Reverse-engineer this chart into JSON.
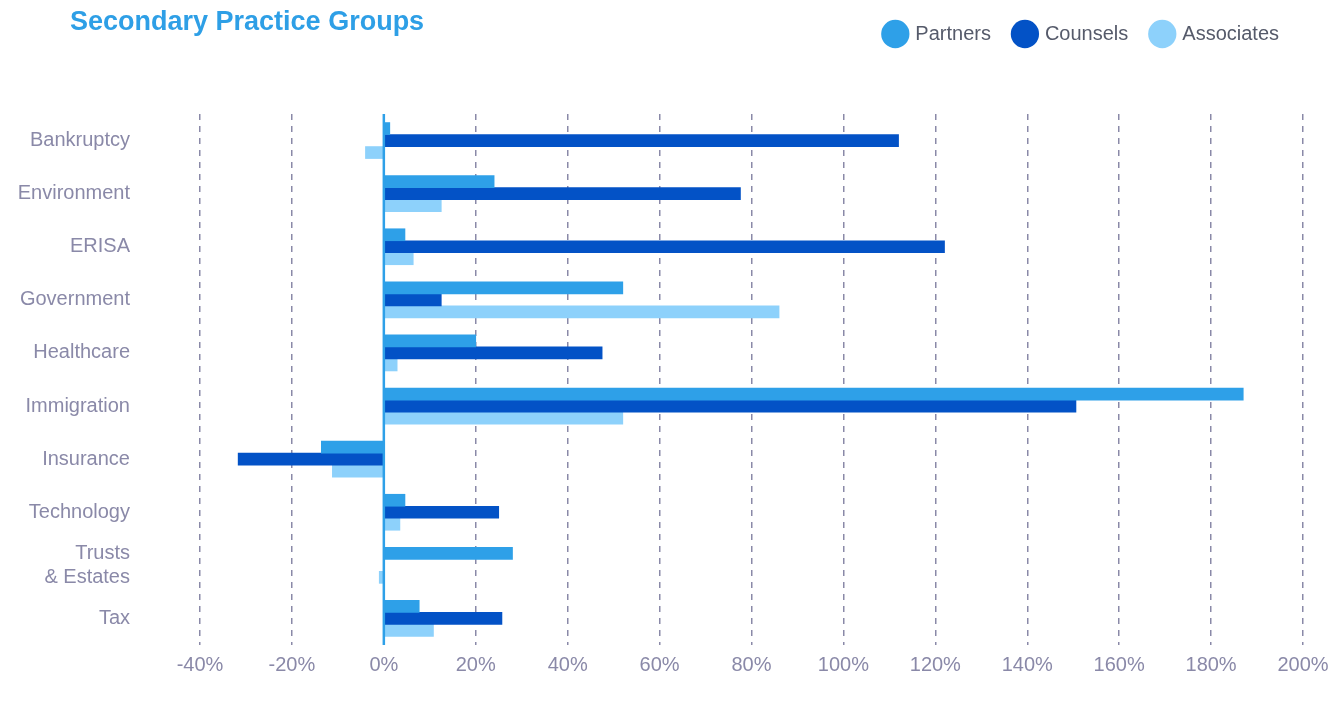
{
  "chart_data": {
    "type": "bar",
    "orientation": "horizontal",
    "title": "Secondary Practice Groups",
    "categories": [
      "Bankruptcy",
      "Environment",
      "ERISA",
      "Government",
      "Healthcare",
      "Immigration",
      "Insurance",
      "Technology",
      "Trusts & Estates",
      "Tax"
    ],
    "series": [
      {
        "name": "Partners",
        "color": "#2ea0e8",
        "values": [
          1.3,
          24,
          4.6,
          52,
          20,
          187,
          -13.6,
          4.6,
          28,
          7.7
        ]
      },
      {
        "name": "Counsels",
        "color": "#0352c6",
        "values": [
          112,
          77.6,
          122,
          12.5,
          47.5,
          150.6,
          -31.7,
          25,
          null,
          25.7
        ]
      },
      {
        "name": "Associates",
        "color": "#8dd1fb",
        "values": [
          -4,
          12.5,
          6.4,
          86,
          2.9,
          52,
          -11.2,
          3.5,
          -1,
          10.8
        ]
      }
    ],
    "xlim": [
      -40,
      200
    ],
    "xticks": [
      {
        "value": -40,
        "label": "-40%"
      },
      {
        "value": -20,
        "label": "-20%"
      },
      {
        "value": 0,
        "label": "0%"
      },
      {
        "value": 20,
        "label": "20%"
      },
      {
        "value": 40,
        "label": "40%"
      },
      {
        "value": 60,
        "label": "60%"
      },
      {
        "value": 80,
        "label": "80%"
      },
      {
        "value": 100,
        "label": "100%"
      },
      {
        "value": 120,
        "label": "120%"
      },
      {
        "value": 140,
        "label": "140%"
      },
      {
        "value": 160,
        "label": "160%"
      },
      {
        "value": 180,
        "label": "180%"
      },
      {
        "value": 200,
        "label": "200%"
      }
    ],
    "ref_lines": [
      {
        "axis": "x",
        "value": 0,
        "color": "#2ea0e8",
        "line_style": "solid"
      }
    ],
    "grid": "x",
    "legend": "top right"
  }
}
